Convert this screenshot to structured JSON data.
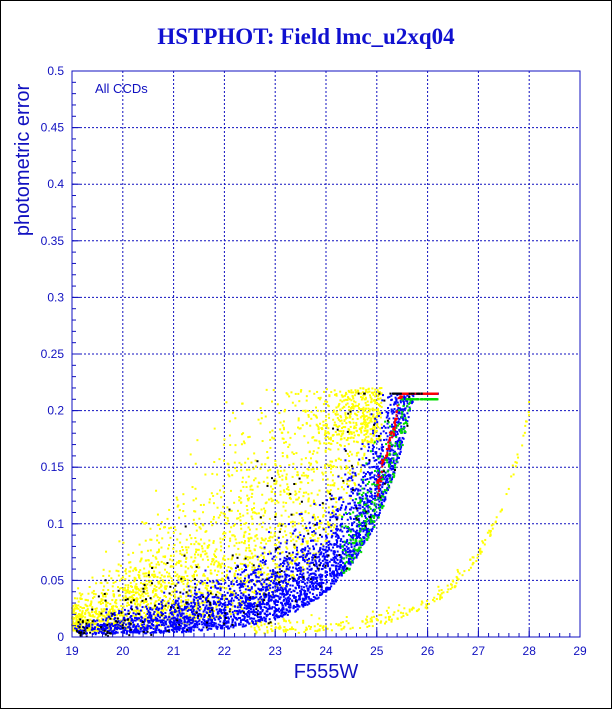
{
  "page": {
    "title": "HSTPHOT: Field lmc_u2xq04",
    "annotation": "All CCDs"
  },
  "colors": {
    "axis": "#1010c0",
    "title": "#1010d0",
    "series_main": "#0000ff",
    "series_faint": "#ffff00",
    "series_green": "#00dd00",
    "series_red": "#ff0000",
    "series_black": "#000000"
  },
  "chart_data": {
    "type": "scatter",
    "title": "HSTPHOT: Field lmc_u2xq04",
    "xlabel": "F555W",
    "ylabel": "photometric error",
    "xlim": [
      19,
      29
    ],
    "ylim": [
      0,
      0.5
    ],
    "x_ticks": [
      19,
      20,
      21,
      22,
      23,
      24,
      25,
      26,
      27,
      28,
      29
    ],
    "y_ticks": [
      0,
      0.05,
      0.1,
      0.15,
      0.2,
      0.25,
      0.3,
      0.35,
      0.4,
      0.45,
      0.5
    ],
    "grid": true,
    "annotations": [
      "All CCDs"
    ],
    "series": [
      {
        "color": "yellow",
        "points": [
          [
            19.2,
            0.04
          ],
          [
            19.5,
            0.06
          ],
          [
            19.8,
            0.05
          ],
          [
            20.2,
            0.07
          ],
          [
            20.5,
            0.03
          ],
          [
            20.8,
            0.08
          ],
          [
            21.0,
            0.06
          ],
          [
            21.3,
            0.09
          ],
          [
            21.6,
            0.05
          ],
          [
            21.9,
            0.1
          ],
          [
            22.1,
            0.12
          ],
          [
            22.3,
            0.08
          ],
          [
            22.5,
            0.14
          ],
          [
            22.7,
            0.1
          ],
          [
            22.9,
            0.16
          ],
          [
            23.0,
            0.13
          ],
          [
            23.2,
            0.18
          ],
          [
            23.4,
            0.15
          ],
          [
            23.6,
            0.2
          ],
          [
            23.8,
            0.14
          ],
          [
            24.0,
            0.17
          ],
          [
            24.2,
            0.21
          ],
          [
            24.4,
            0.12
          ],
          [
            24.6,
            0.19
          ],
          [
            24.8,
            0.16
          ],
          [
            25.0,
            0.2
          ],
          [
            23.5,
            0.005
          ],
          [
            24.5,
            0.01
          ],
          [
            25.5,
            0.02
          ],
          [
            26.2,
            0.035
          ],
          [
            26.8,
            0.07
          ],
          [
            27.3,
            0.1
          ],
          [
            27.6,
            0.14
          ],
          [
            27.9,
            0.17
          ]
        ]
      },
      {
        "color": "blue",
        "points": [
          [
            19.0,
            0.005
          ],
          [
            20.0,
            0.008
          ],
          [
            21.0,
            0.012
          ],
          [
            22.0,
            0.018
          ],
          [
            22.5,
            0.022
          ],
          [
            23.0,
            0.03
          ],
          [
            23.5,
            0.04
          ],
          [
            24.0,
            0.05
          ],
          [
            24.5,
            0.065
          ],
          [
            25.0,
            0.08
          ],
          [
            25.5,
            0.1
          ],
          [
            26.0,
            0.15
          ],
          [
            26.2,
            0.21
          ]
        ]
      },
      {
        "color": "green",
        "points": [
          [
            24.8,
            0.1
          ],
          [
            25.0,
            0.12
          ],
          [
            25.2,
            0.15
          ],
          [
            25.4,
            0.17
          ],
          [
            25.6,
            0.19
          ],
          [
            25.8,
            0.2
          ],
          [
            26.0,
            0.2
          ]
        ]
      },
      {
        "color": "red",
        "points": [
          [
            25.2,
            0.09
          ],
          [
            25.5,
            0.11
          ],
          [
            25.8,
            0.13
          ],
          [
            26.0,
            0.16
          ],
          [
            26.1,
            0.19
          ],
          [
            26.2,
            0.21
          ]
        ]
      },
      {
        "color": "black",
        "points": [
          [
            24.2,
            0.05
          ],
          [
            24.6,
            0.08
          ],
          [
            25.0,
            0.12
          ],
          [
            25.3,
            0.15
          ],
          [
            25.6,
            0.18
          ],
          [
            25.9,
            0.21
          ]
        ]
      }
    ]
  }
}
